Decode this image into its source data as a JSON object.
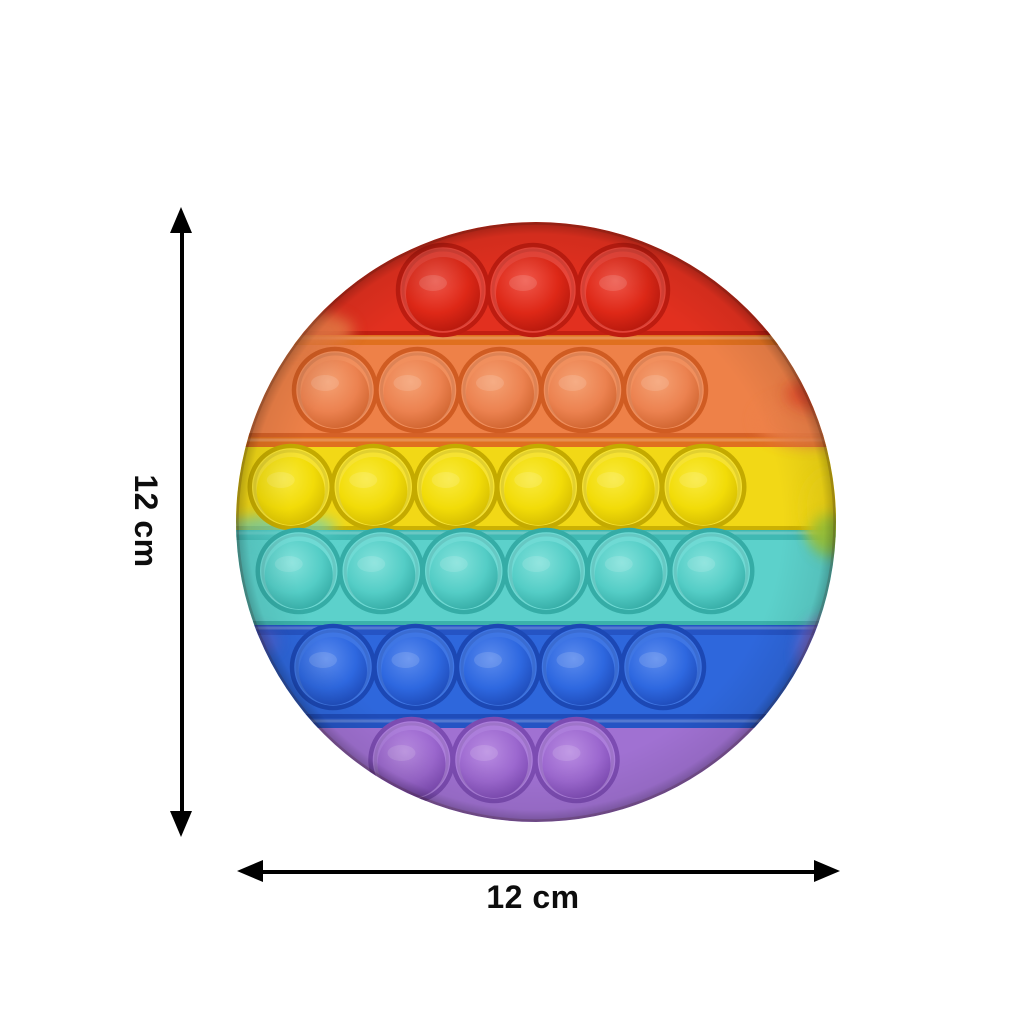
{
  "product": {
    "description": "Rainbow round pop-it bubble fidget toy product photo with size annotations",
    "shape": "round",
    "total_bubbles": 28
  },
  "dimensions": {
    "height_label": "12 cm",
    "width_label": "12 cm",
    "annotation_color": "#000000"
  },
  "toy": {
    "rows": [
      {
        "name": "red",
        "bubbles": 3,
        "band": "#e2301f",
        "band_inner": "#e8463a",
        "groove": "#bd1c10",
        "ridge": "#cf4a28",
        "dome_light": "#f0574a",
        "dome_mid": "#de2817",
        "dome_dark": "#ac140a"
      },
      {
        "name": "orange",
        "bubbles": 5,
        "band": "#ee8148",
        "band_inner": "#f18f5d",
        "groove": "#d05c22",
        "ridge": "#e0701f",
        "dome_light": "#f5a173",
        "dome_mid": "#ec8250",
        "dome_dark": "#c85c26"
      },
      {
        "name": "yellow",
        "bubbles": 6,
        "band": "#f2d816",
        "band_inner": "#f6e232",
        "groove": "#c4aa00",
        "ridge": "#ddb81c",
        "dome_light": "#f9ea3e",
        "dome_mid": "#f2dc08",
        "dome_dark": "#ccb300"
      },
      {
        "name": "cyan",
        "bubbles": 6,
        "band": "#5cd1cb",
        "band_inner": "#6fdad4",
        "groove": "#35aca6",
        "ridge": "#3fb9b3",
        "dome_light": "#83e2db",
        "dome_mid": "#54cdc6",
        "dome_dark": "#2da39d"
      },
      {
        "name": "blue",
        "bubbles": 5,
        "band": "#2e67dc",
        "band_inner": "#3f76e4",
        "groove": "#1c48b4",
        "ridge": "#2554c4",
        "dome_light": "#5b8bee",
        "dome_mid": "#2e68e0",
        "dome_dark": "#1a43ae"
      },
      {
        "name": "purple",
        "bubbles": 3,
        "band": "#a071d2",
        "band_inner": "#ac7edb",
        "groove": "#7c4cb2",
        "ridge": "#8a5cc0",
        "dome_light": "#b98ce2",
        "dome_mid": "#9c68cf",
        "dome_dark": "#7643ad"
      }
    ],
    "marble_accent_green": "#8ec63f",
    "background": "#ffffff"
  }
}
